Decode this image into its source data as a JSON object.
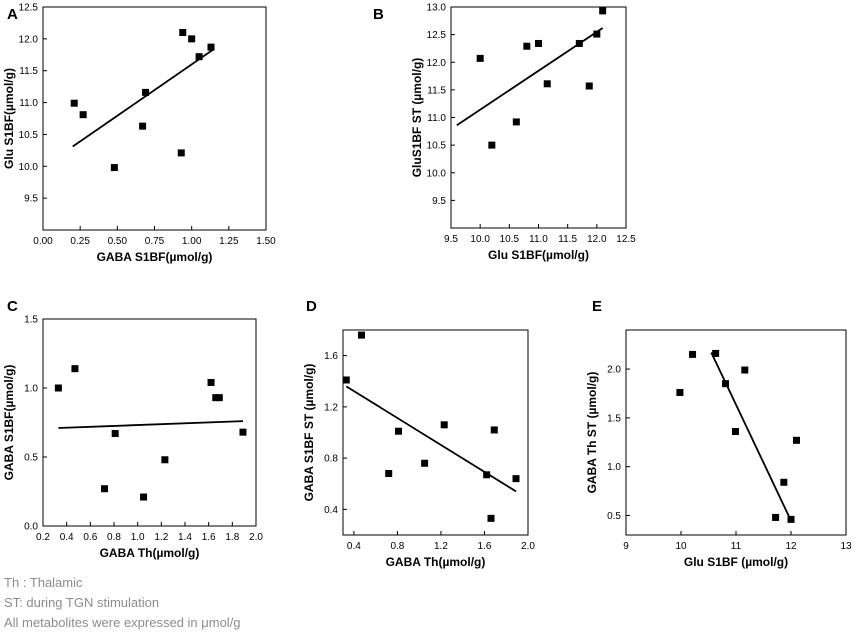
{
  "chart_data": [
    {
      "panel_label": "A",
      "type": "scatter",
      "xlabel": "GABA S1BF(µmol/g)",
      "ylabel": "Glu S1BF(µmol/g)",
      "xlim": [
        0.0,
        1.5
      ],
      "ylim": [
        9.0,
        12.5
      ],
      "xticks": [
        0.0,
        0.25,
        0.5,
        0.75,
        1.0,
        1.25,
        1.5
      ],
      "xtick_labels": [
        "0.00",
        "0.25",
        "0.50",
        "0.75",
        "1.00",
        "1.25",
        "1.50"
      ],
      "yticks": [
        9.5,
        10.0,
        10.5,
        11.0,
        11.5,
        12.0,
        12.5
      ],
      "ytick_labels": [
        "9.5",
        "10.0",
        "10.5",
        "11.0",
        "11.5",
        "12.0",
        "12.5"
      ],
      "points": [
        {
          "x": 0.21,
          "y": 10.99
        },
        {
          "x": 0.27,
          "y": 10.81
        },
        {
          "x": 0.48,
          "y": 9.98
        },
        {
          "x": 0.67,
          "y": 10.63
        },
        {
          "x": 0.69,
          "y": 11.16
        },
        {
          "x": 0.93,
          "y": 10.21
        },
        {
          "x": 0.94,
          "y": 12.1
        },
        {
          "x": 1.0,
          "y": 12.0
        },
        {
          "x": 1.05,
          "y": 11.72
        },
        {
          "x": 1.13,
          "y": 11.87
        }
      ],
      "fit_line": {
        "x": [
          0.2,
          1.15
        ],
        "y": [
          10.31,
          11.84
        ]
      }
    },
    {
      "panel_label": "B",
      "type": "scatter",
      "xlabel": "Glu S1BF(µmol/g)",
      "ylabel": "GluS1BF ST (µmol/g)",
      "xlim": [
        9.5,
        12.5
      ],
      "ylim": [
        9.0,
        13.0
      ],
      "xticks": [
        9.5,
        10.0,
        10.5,
        11.0,
        11.5,
        12.0,
        12.5
      ],
      "xtick_labels": [
        "9.5",
        "10.0",
        "10.5",
        "11.0",
        "11.5",
        "12.0",
        "12.5"
      ],
      "yticks": [
        9.5,
        10.0,
        10.5,
        11.0,
        11.5,
        12.0,
        12.5,
        13.0
      ],
      "ytick_labels": [
        "9.5",
        "10.0",
        "10.5",
        "11.0",
        "11.5",
        "12.0",
        "12.5",
        "13.0"
      ],
      "points": [
        {
          "x": 10.0,
          "y": 12.07
        },
        {
          "x": 10.2,
          "y": 10.5
        },
        {
          "x": 10.62,
          "y": 10.92
        },
        {
          "x": 10.8,
          "y": 12.29
        },
        {
          "x": 11.0,
          "y": 12.34
        },
        {
          "x": 11.15,
          "y": 11.61
        },
        {
          "x": 11.7,
          "y": 12.34
        },
        {
          "x": 11.87,
          "y": 11.57
        },
        {
          "x": 12.0,
          "y": 12.51
        },
        {
          "x": 12.1,
          "y": 12.93
        }
      ],
      "fit_line": {
        "x": [
          9.6,
          12.1
        ],
        "y": [
          10.86,
          12.62
        ]
      }
    },
    {
      "panel_label": "C",
      "type": "scatter",
      "xlabel": "GABA Th(µmol/g)",
      "ylabel": "GABA S1BF(µmol/g)",
      "xlim": [
        0.2,
        2.0
      ],
      "ylim": [
        0.0,
        1.5
      ],
      "xticks": [
        0.2,
        0.4,
        0.6,
        0.8,
        1.0,
        1.2,
        1.4,
        1.6,
        1.8,
        2.0
      ],
      "xtick_labels": [
        "0.2",
        "0.4",
        "0.6",
        "0.8",
        "1.0",
        "1.2",
        "1.4",
        "1.6",
        "1.8",
        "2.0"
      ],
      "yticks": [
        0.0,
        0.5,
        1.0,
        1.5
      ],
      "ytick_labels": [
        "0.0",
        "0.5",
        "1.0",
        "1.5"
      ],
      "points": [
        {
          "x": 0.33,
          "y": 1.0
        },
        {
          "x": 0.47,
          "y": 1.14
        },
        {
          "x": 0.72,
          "y": 0.27
        },
        {
          "x": 0.81,
          "y": 0.67
        },
        {
          "x": 1.05,
          "y": 0.21
        },
        {
          "x": 1.23,
          "y": 0.48
        },
        {
          "x": 1.62,
          "y": 1.04
        },
        {
          "x": 1.66,
          "y": 0.93
        },
        {
          "x": 1.69,
          "y": 0.93
        },
        {
          "x": 1.89,
          "y": 0.68
        }
      ],
      "fit_line": {
        "x": [
          0.33,
          1.89
        ],
        "y": [
          0.71,
          0.76
        ]
      }
    },
    {
      "panel_label": "D",
      "type": "scatter",
      "xlabel": "GABA Th(µmol/g)",
      "ylabel": "GABA S1BF ST (µmol/g)",
      "xlim": [
        0.3,
        2.0
      ],
      "ylim": [
        0.2,
        1.8
      ],
      "xticks": [
        0.4,
        0.8,
        1.2,
        1.6,
        2.0
      ],
      "xtick_labels": [
        "0.4",
        "0.8",
        "1.2",
        "1.6",
        "2.0"
      ],
      "yticks": [
        0.4,
        0.8,
        1.2,
        1.6
      ],
      "ytick_labels": [
        "0.4",
        "0.8",
        "1.2",
        "1.6"
      ],
      "points": [
        {
          "x": 0.33,
          "y": 1.41
        },
        {
          "x": 0.47,
          "y": 1.76
        },
        {
          "x": 0.72,
          "y": 0.68
        },
        {
          "x": 0.81,
          "y": 1.01
        },
        {
          "x": 1.05,
          "y": 0.76
        },
        {
          "x": 1.23,
          "y": 1.06
        },
        {
          "x": 1.62,
          "y": 0.67
        },
        {
          "x": 1.66,
          "y": 0.33
        },
        {
          "x": 1.69,
          "y": 1.02
        },
        {
          "x": 1.89,
          "y": 0.64
        }
      ],
      "fit_line": {
        "x": [
          0.33,
          1.89
        ],
        "y": [
          1.36,
          0.54
        ]
      }
    },
    {
      "panel_label": "E",
      "type": "scatter",
      "xlabel": "Glu S1BF (µmol/g)",
      "ylabel": "GABA Th ST (µmol/g)",
      "xlim": [
        9.0,
        13.0
      ],
      "ylim": [
        0.3,
        2.4
      ],
      "xticks": [
        9,
        10,
        11,
        12,
        13
      ],
      "xtick_labels": [
        "9",
        "10",
        "11",
        "12",
        "13"
      ],
      "yticks": [
        0.5,
        1.0,
        1.5,
        2.0
      ],
      "ytick_labels": [
        "0.5",
        "1.0",
        "1.5",
        "2.0"
      ],
      "points": [
        {
          "x": 9.98,
          "y": 1.76
        },
        {
          "x": 10.21,
          "y": 2.15
        },
        {
          "x": 10.63,
          "y": 2.16
        },
        {
          "x": 10.81,
          "y": 1.85
        },
        {
          "x": 10.99,
          "y": 1.36
        },
        {
          "x": 11.16,
          "y": 1.99
        },
        {
          "x": 11.72,
          "y": 0.48
        },
        {
          "x": 11.87,
          "y": 0.84
        },
        {
          "x": 12.0,
          "y": 0.46
        },
        {
          "x": 12.1,
          "y": 1.27
        }
      ],
      "fit_line": {
        "x": [
          10.55,
          11.98
        ],
        "y": [
          2.17,
          0.47
        ]
      }
    }
  ],
  "footnotes": {
    "line1": "Th : Thalamic",
    "line2": "ST:  during TGN stimulation",
    "line3": "All metabolites were expressed in μmol/g"
  },
  "colors": {
    "ink": "#000000",
    "footnote": "#8c8c8c"
  }
}
